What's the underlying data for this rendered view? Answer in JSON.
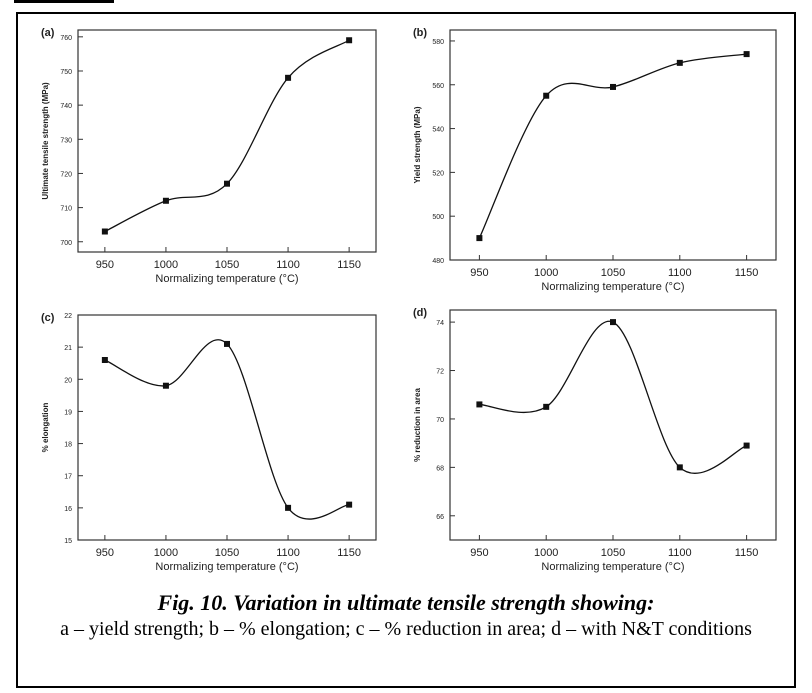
{
  "figure": {
    "caption_title": "Fig. 10. Variation in ultimate tensile strength showing:",
    "caption_body": "a – yield strength; b – % elongation; c – % reduction in area; d – with N&T conditions"
  },
  "chart_data": [
    {
      "type": "line",
      "panel_label": "(a)",
      "xlabel": "Normalizing temperature (°C)",
      "ylabel": "Ultimate tensile strength (MPa)",
      "x": [
        950,
        1000,
        1050,
        1100,
        1150
      ],
      "values": [
        703,
        712,
        717,
        748,
        759
      ],
      "xticks": [
        950,
        1000,
        1050,
        1100,
        1150
      ],
      "yticks": [
        700,
        710,
        720,
        730,
        740,
        750,
        760
      ],
      "ylim": [
        697,
        762
      ],
      "grid": false
    },
    {
      "type": "line",
      "panel_label": "(b)",
      "xlabel": "Normalizing temperature (°C)",
      "ylabel": "Yield strength (MPa)",
      "x": [
        950,
        1000,
        1050,
        1100,
        1150
      ],
      "values": [
        490,
        555,
        559,
        570,
        574
      ],
      "xticks": [
        950,
        1000,
        1050,
        1100,
        1150
      ],
      "yticks": [
        480,
        500,
        520,
        540,
        560,
        580
      ],
      "ylim": [
        480,
        585
      ],
      "grid": false
    },
    {
      "type": "line",
      "panel_label": "(c)",
      "xlabel": "Normalizing temperature (°C)",
      "ylabel": "% elongation",
      "x": [
        950,
        1000,
        1050,
        1100,
        1150
      ],
      "values": [
        20.6,
        19.8,
        21.1,
        16.0,
        16.1
      ],
      "xticks": [
        950,
        1000,
        1050,
        1100,
        1150
      ],
      "yticks": [
        15,
        16,
        17,
        18,
        19,
        20,
        21,
        22
      ],
      "ylim": [
        15,
        22
      ],
      "grid": false
    },
    {
      "type": "line",
      "panel_label": "(d)",
      "xlabel": "Normalizing temperature (°C)",
      "ylabel": "% reduction in area",
      "x": [
        950,
        1000,
        1050,
        1100,
        1150
      ],
      "values": [
        70.6,
        70.5,
        74.0,
        68.0,
        68.9
      ],
      "xticks": [
        950,
        1000,
        1050,
        1100,
        1150
      ],
      "yticks": [
        66,
        68,
        70,
        72,
        74
      ],
      "ylim": [
        65,
        74.5
      ],
      "grid": false
    }
  ]
}
